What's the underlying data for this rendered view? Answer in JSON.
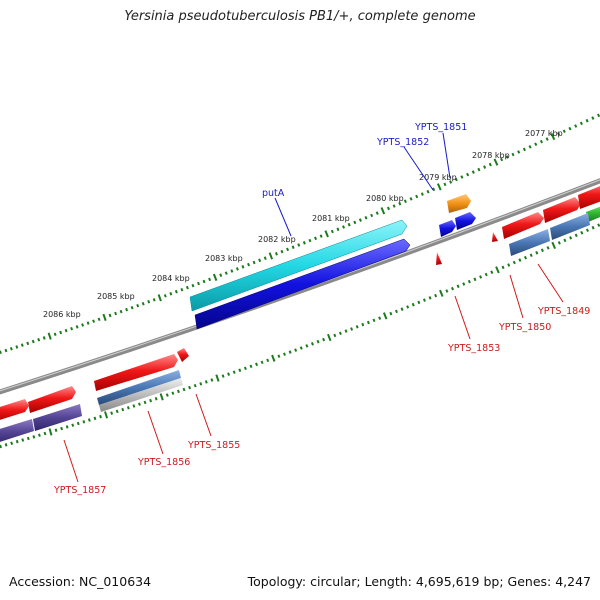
{
  "title": "Yersinia pseudotuberculosis PB1/+, complete genome",
  "footer": {
    "accession": "Accession: NC_010634",
    "info": "Topology: circular; Length: 4,695,619 bp; Genes: 4,247"
  },
  "colors": {
    "backbone": "#7a7a7a",
    "tick": "#1e7a1e",
    "forward_gene": "#e8141e",
    "reverse_gene": "#e8141e",
    "putA": "#27d4e0",
    "blue_gene": "#1414e6",
    "orange_gene": "#f39318",
    "steel_gene": "#4a78b5",
    "violet_gene": "#5a4a9a",
    "silver_gene": "#b8b8b8",
    "green_gene": "#33bb33",
    "label_blue": "#1a1acc",
    "label_red": "#cc1a1a"
  },
  "scale_labels": [
    "2086 kbp",
    "2085 kbp",
    "2084 kbp",
    "2083 kbp",
    "2082 kbp",
    "2081 kbp",
    "2080 kbp",
    "2079 kbp",
    "2078 kbp",
    "2077 kbp"
  ],
  "gene_labels_top": [
    "putA",
    "YPTS_1852",
    "YPTS_1851"
  ],
  "gene_labels_bottom": [
    "YPTS_1857",
    "YPTS_1856",
    "YPTS_1855",
    "YPTS_1853",
    "YPTS_1850",
    "YPTS_1849"
  ]
}
